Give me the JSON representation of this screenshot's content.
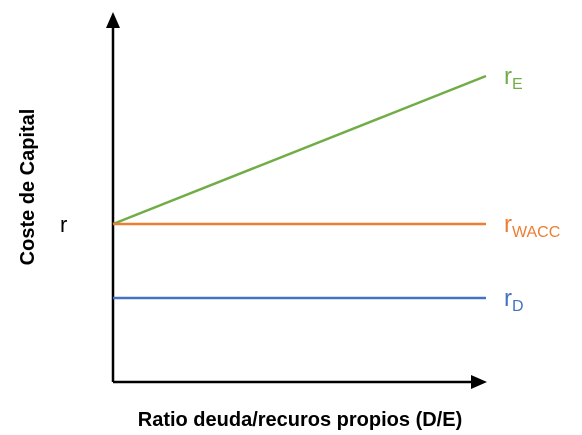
{
  "chart_data": {
    "type": "line",
    "xlabel": "Ratio deuda/recuros propios (D/E)",
    "ylabel": "Coste de Capital",
    "grid": false,
    "axis_ticks": false,
    "y_marker_label": "r",
    "series": [
      {
        "name": "r",
        "name_subscript": "E",
        "color": "#70ad47",
        "x": [
          0,
          1
        ],
        "y": [
          0,
          1
        ]
      },
      {
        "name": "r",
        "name_subscript": "WACC",
        "color": "#ed7d31",
        "x": [
          0,
          1
        ],
        "y": [
          0,
          0
        ]
      },
      {
        "name": "r",
        "name_subscript": "D",
        "color": "#4472c4",
        "x": [
          0,
          1
        ],
        "y": [
          -0.5,
          -0.5
        ]
      }
    ]
  }
}
